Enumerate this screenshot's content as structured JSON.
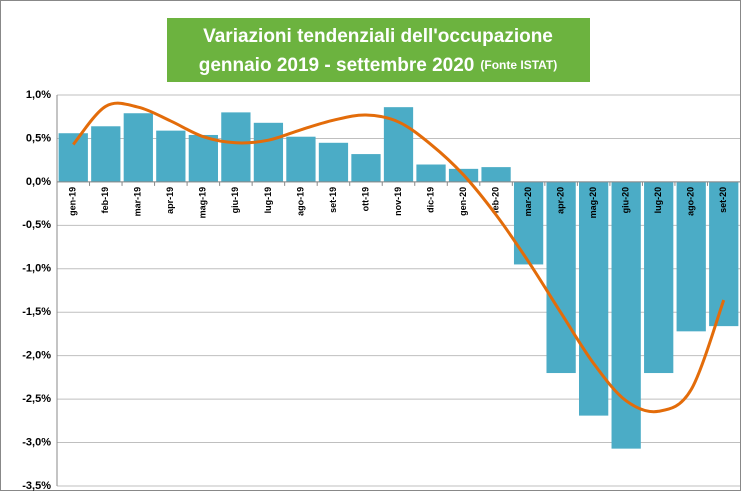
{
  "chart_data": {
    "type": "bar",
    "title": "Variazioni  tendenziali dell'occupazione",
    "subtitle": "gennaio 2019 -  settembre 2020",
    "note": "(Fonte ISTAT)",
    "categories": [
      "gen-19",
      "feb-19",
      "mar-19",
      "apr-19",
      "mag-19",
      "giu-19",
      "lug-19",
      "ago-19",
      "set-19",
      "ott-19",
      "nov-19",
      "dic-19",
      "gen-20",
      "feb-20",
      "mar-20",
      "apr-20",
      "mag-20",
      "giu-20",
      "lug-20",
      "ago-20",
      "set-20"
    ],
    "series": [
      {
        "type": "bar",
        "color": "#4bacc6",
        "values": [
          0.56,
          0.64,
          0.79,
          0.59,
          0.54,
          0.8,
          0.68,
          0.52,
          0.45,
          0.32,
          0.86,
          0.2,
          0.15,
          0.17,
          -0.95,
          -2.2,
          -2.69,
          -3.07,
          -2.2,
          -1.72,
          -1.66
        ]
      },
      {
        "type": "line",
        "color": "#e36c0a",
        "values": [
          0.43,
          0.87,
          0.86,
          0.7,
          0.52,
          0.45,
          0.48,
          0.6,
          0.71,
          0.77,
          0.69,
          0.43,
          0.08,
          -0.38,
          -0.92,
          -1.51,
          -2.09,
          -2.52,
          -2.64,
          -2.39,
          -1.36
        ]
      }
    ],
    "ylim": [
      -3.5,
      1.0
    ],
    "yticks": [
      {
        "value": -3.5,
        "label": "-3,5%"
      },
      {
        "value": -3.0,
        "label": "-3,0%"
      },
      {
        "value": -2.5,
        "label": "-2,5%"
      },
      {
        "value": -2.0,
        "label": "-2,0%"
      },
      {
        "value": -1.5,
        "label": "-1,5%"
      },
      {
        "value": -1.0,
        "label": "-1,0%"
      },
      {
        "value": -0.5,
        "label": "-0,5%"
      },
      {
        "value": 0,
        "label": "0,0%"
      },
      {
        "value": 0.5,
        "label": "0,5%"
      },
      {
        "value": 1.0,
        "label": "1,0%"
      }
    ],
    "grid": true
  }
}
